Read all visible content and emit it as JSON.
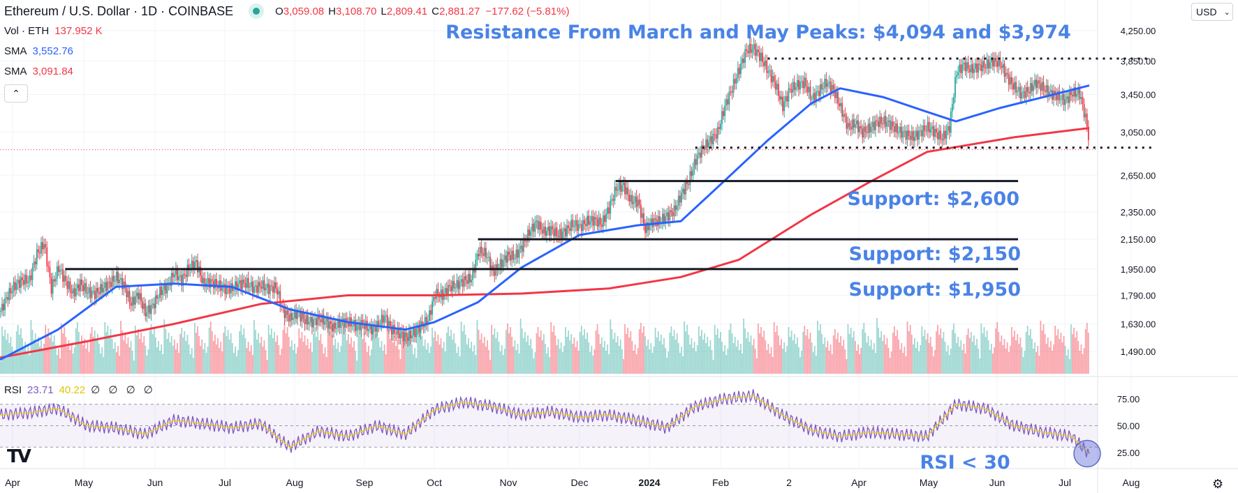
{
  "header": {
    "symbol": "Ethereum / U.S. Dollar · 1D · COINBASE",
    "ohlc": {
      "open_label": "O",
      "open": "3,059.08",
      "high_label": "H",
      "high": "3,108.70",
      "low_label": "L",
      "low": "2,809.41",
      "close_label": "C",
      "close": "2,881.27",
      "change": "−177.62 (−5.81%)"
    }
  },
  "indicators": {
    "volume": {
      "label": "Vol · ETH",
      "value": "137.952 K"
    },
    "sma1": {
      "label": "SMA",
      "value": "3,552.76",
      "color": "#2962ff"
    },
    "sma2": {
      "label": "SMA",
      "value": "3,091.84",
      "color": "#f23645"
    }
  },
  "currency_button": "USD",
  "rsi_header": {
    "label": "RSI",
    "rsi": "23.71",
    "rsi_ma": "40.22",
    "extras": "∅ ∅ ∅ ∅"
  },
  "annotations": {
    "resistance": "Resistance From March and May Peaks: $4,094 and $3,974",
    "support_2600": "Support: $2,600",
    "support_2150": "Support: $2,150",
    "support_1950": "Support: $1,950",
    "rsi_note": "RSI < 30"
  },
  "chart_data": {
    "type": "candlestick",
    "title": "Ethereum / U.S. Dollar · 1D · COINBASE",
    "price_axis": {
      "ticks": [
        "4,250.00",
        "3,850.00",
        "3,450.00",
        "3,050.00",
        "2,650.00",
        "2,350.00",
        "2,150.00",
        "1,950.00",
        "1,790.00",
        "1,630.00",
        "1,490.00"
      ],
      "scale": "log",
      "last_price": 2881.27
    },
    "rsi_axis": {
      "ticks": [
        "75.00",
        "50.00",
        "25.00"
      ],
      "ylim": [
        0,
        100
      ],
      "bands": [
        30,
        70
      ]
    },
    "x_ticks": [
      "Apr",
      "May",
      "Jun",
      "Jul",
      "Aug",
      "Sep",
      "Oct",
      "Nov",
      "Dec",
      "2024",
      "Feb",
      "2",
      "Apr",
      "May",
      "Jun",
      "Jul",
      "Aug"
    ],
    "close_path": [
      [
        0,
        1700
      ],
      [
        5,
        1790
      ],
      [
        10,
        1850
      ],
      [
        15,
        1880
      ],
      [
        20,
        1880
      ],
      [
        25,
        2050
      ],
      [
        30,
        2120
      ],
      [
        35,
        1830
      ],
      [
        40,
        1960
      ],
      [
        45,
        1870
      ],
      [
        50,
        1800
      ],
      [
        55,
        1860
      ],
      [
        60,
        1810
      ],
      [
        65,
        1800
      ],
      [
        70,
        1830
      ],
      [
        75,
        1860
      ],
      [
        80,
        1900
      ],
      [
        85,
        1850
      ],
      [
        90,
        1740
      ],
      [
        95,
        1800
      ],
      [
        100,
        1690
      ],
      [
        105,
        1730
      ],
      [
        110,
        1810
      ],
      [
        115,
        1840
      ],
      [
        120,
        1930
      ],
      [
        125,
        1880
      ],
      [
        130,
        1960
      ],
      [
        135,
        1990
      ],
      [
        140,
        1860
      ],
      [
        145,
        1870
      ],
      [
        150,
        1850
      ],
      [
        155,
        1830
      ],
      [
        160,
        1830
      ],
      [
        165,
        1860
      ],
      [
        170,
        1860
      ],
      [
        175,
        1830
      ],
      [
        180,
        1850
      ],
      [
        185,
        1830
      ],
      [
        190,
        1840
      ],
      [
        195,
        1700
      ],
      [
        200,
        1660
      ],
      [
        205,
        1690
      ],
      [
        210,
        1650
      ],
      [
        215,
        1640
      ],
      [
        220,
        1660
      ],
      [
        225,
        1640
      ],
      [
        230,
        1610
      ],
      [
        235,
        1640
      ],
      [
        240,
        1640
      ],
      [
        245,
        1620
      ],
      [
        250,
        1630
      ],
      [
        255,
        1600
      ],
      [
        260,
        1620
      ],
      [
        265,
        1670
      ],
      [
        270,
        1600
      ],
      [
        275,
        1580
      ],
      [
        280,
        1560
      ],
      [
        285,
        1580
      ],
      [
        290,
        1620
      ],
      [
        295,
        1650
      ],
      [
        300,
        1800
      ],
      [
        305,
        1790
      ],
      [
        310,
        1840
      ],
      [
        315,
        1850
      ],
      [
        320,
        1880
      ],
      [
        325,
        1890
      ],
      [
        330,
        2070
      ],
      [
        335,
        2050
      ],
      [
        340,
        1930
      ],
      [
        345,
        1980
      ],
      [
        350,
        2040
      ],
      [
        355,
        2030
      ],
      [
        360,
        2100
      ],
      [
        365,
        2200
      ],
      [
        370,
        2270
      ],
      [
        375,
        2200
      ],
      [
        380,
        2220
      ],
      [
        385,
        2180
      ],
      [
        390,
        2210
      ],
      [
        395,
        2260
      ],
      [
        400,
        2240
      ],
      [
        405,
        2280
      ],
      [
        410,
        2290
      ],
      [
        415,
        2260
      ],
      [
        420,
        2380
      ],
      [
        425,
        2540
      ],
      [
        430,
        2560
      ],
      [
        435,
        2440
      ],
      [
        440,
        2430
      ],
      [
        445,
        2220
      ],
      [
        450,
        2280
      ],
      [
        455,
        2280
      ],
      [
        460,
        2320
      ],
      [
        465,
        2360
      ],
      [
        470,
        2490
      ],
      [
        475,
        2600
      ],
      [
        480,
        2790
      ],
      [
        485,
        2900
      ],
      [
        490,
        2970
      ],
      [
        495,
        3050
      ],
      [
        500,
        3320
      ],
      [
        505,
        3520
      ],
      [
        510,
        3750
      ],
      [
        515,
        3990
      ],
      [
        520,
        4010
      ],
      [
        525,
        3890
      ],
      [
        530,
        3720
      ],
      [
        535,
        3560
      ],
      [
        540,
        3320
      ],
      [
        545,
        3510
      ],
      [
        550,
        3560
      ],
      [
        555,
        3590
      ],
      [
        560,
        3400
      ],
      [
        565,
        3490
      ],
      [
        570,
        3590
      ],
      [
        575,
        3500
      ],
      [
        580,
        3300
      ],
      [
        585,
        3100
      ],
      [
        590,
        3140
      ],
      [
        595,
        3050
      ],
      [
        600,
        3090
      ],
      [
        605,
        3150
      ],
      [
        610,
        3160
      ],
      [
        615,
        3120
      ],
      [
        620,
        3060
      ],
      [
        625,
        3030
      ],
      [
        630,
        3000
      ],
      [
        635,
        3050
      ],
      [
        640,
        3100
      ],
      [
        645,
        3050
      ],
      [
        650,
        2990
      ],
      [
        655,
        3100
      ],
      [
        660,
        3710
      ],
      [
        665,
        3800
      ],
      [
        670,
        3740
      ],
      [
        675,
        3780
      ],
      [
        680,
        3790
      ],
      [
        685,
        3850
      ],
      [
        690,
        3820
      ],
      [
        695,
        3650
      ],
      [
        700,
        3530
      ],
      [
        705,
        3450
      ],
      [
        710,
        3500
      ],
      [
        715,
        3590
      ],
      [
        720,
        3520
      ],
      [
        725,
        3460
      ],
      [
        730,
        3430
      ],
      [
        735,
        3380
      ],
      [
        740,
        3470
      ],
      [
        745,
        3460
      ],
      [
        750,
        3120
      ],
      [
        752,
        2881
      ]
    ],
    "sma_blue_path": [
      [
        0,
        1450
      ],
      [
        40,
        1600
      ],
      [
        80,
        1840
      ],
      [
        120,
        1860
      ],
      [
        160,
        1840
      ],
      [
        200,
        1710
      ],
      [
        240,
        1640
      ],
      [
        280,
        1600
      ],
      [
        300,
        1640
      ],
      [
        330,
        1750
      ],
      [
        360,
        1960
      ],
      [
        400,
        2180
      ],
      [
        440,
        2250
      ],
      [
        470,
        2280
      ],
      [
        500,
        2600
      ],
      [
        530,
        2970
      ],
      [
        560,
        3350
      ],
      [
        580,
        3520
      ],
      [
        610,
        3420
      ],
      [
        640,
        3260
      ],
      [
        660,
        3160
      ],
      [
        690,
        3300
      ],
      [
        720,
        3420
      ],
      [
        752,
        3552.76
      ]
    ],
    "sma_red_path": [
      [
        0,
        1460
      ],
      [
        60,
        1540
      ],
      [
        120,
        1630
      ],
      [
        180,
        1740
      ],
      [
        240,
        1790
      ],
      [
        300,
        1790
      ],
      [
        360,
        1800
      ],
      [
        420,
        1830
      ],
      [
        470,
        1900
      ],
      [
        510,
        2010
      ],
      [
        560,
        2330
      ],
      [
        600,
        2590
      ],
      [
        640,
        2860
      ],
      [
        700,
        3000
      ],
      [
        752,
        3091.84
      ]
    ],
    "horizontal_levels": {
      "resistance_dotted": 3880,
      "support_dotted": 2900,
      "support_lines": [
        2600,
        2150,
        1950
      ]
    },
    "volume_note": "volume histogram shown at bottom of price pane",
    "rsi_path": [
      [
        0,
        60
      ],
      [
        20,
        62
      ],
      [
        40,
        66
      ],
      [
        60,
        50
      ],
      [
        80,
        48
      ],
      [
        100,
        42
      ],
      [
        120,
        55
      ],
      [
        140,
        52
      ],
      [
        160,
        48
      ],
      [
        180,
        52
      ],
      [
        200,
        30
      ],
      [
        220,
        45
      ],
      [
        240,
        40
      ],
      [
        260,
        50
      ],
      [
        280,
        42
      ],
      [
        300,
        65
      ],
      [
        320,
        72
      ],
      [
        340,
        68
      ],
      [
        360,
        60
      ],
      [
        380,
        63
      ],
      [
        400,
        58
      ],
      [
        420,
        60
      ],
      [
        440,
        55
      ],
      [
        460,
        48
      ],
      [
        480,
        68
      ],
      [
        500,
        75
      ],
      [
        520,
        78
      ],
      [
        540,
        60
      ],
      [
        560,
        46
      ],
      [
        580,
        40
      ],
      [
        600,
        44
      ],
      [
        620,
        42
      ],
      [
        640,
        40
      ],
      [
        660,
        70
      ],
      [
        680,
        66
      ],
      [
        700,
        50
      ],
      [
        720,
        44
      ],
      [
        740,
        40
      ],
      [
        752,
        23.71
      ]
    ]
  }
}
